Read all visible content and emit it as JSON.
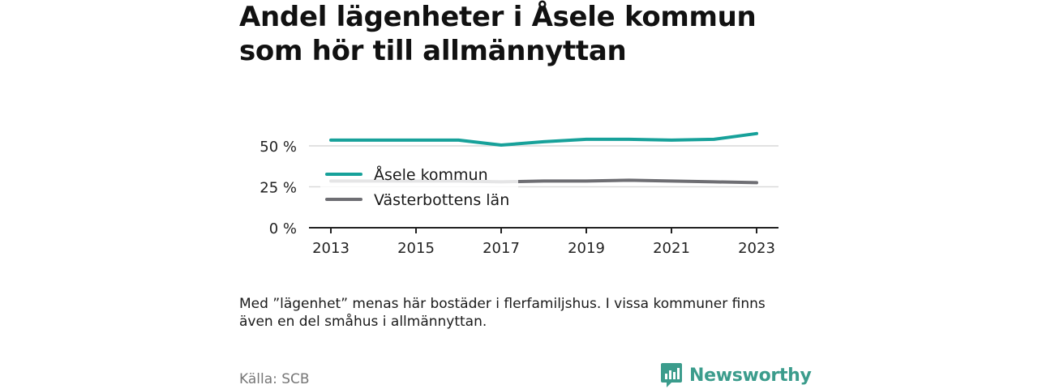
{
  "header": {
    "title_line1": "Andel lägenheter i Åsele kommun",
    "title_line2": "som hör till allmännyttan"
  },
  "chart_data": {
    "type": "line",
    "x": [
      2013,
      2014,
      2015,
      2016,
      2017,
      2018,
      2019,
      2020,
      2021,
      2022,
      2023
    ],
    "x_tick_labels": [
      "2013",
      "2015",
      "2017",
      "2019",
      "2021",
      "2023"
    ],
    "y_tick_labels": [
      "0 %",
      "25 %",
      "50 %"
    ],
    "ylim": [
      0,
      60
    ],
    "grid": true,
    "legend_placement": "inside-left",
    "series": [
      {
        "name": "Åsele kommun",
        "color": "#17a19a",
        "values": [
          53.5,
          53.5,
          53.5,
          53.5,
          50.5,
          52.5,
          54,
          54,
          53.5,
          54,
          57.5
        ]
      },
      {
        "name": "Västerbottens län",
        "color": "#6e6e73",
        "values": [
          28.5,
          28.5,
          28.5,
          28.5,
          28,
          28.5,
          28.5,
          29,
          28.5,
          28,
          27.5
        ]
      }
    ]
  },
  "footer": {
    "note": "Med ”lägenhet” menas här bostäder i flerfamiljshus. I vissa kommuner finns även en del småhus i allmännyttan.",
    "source": "Källa: SCB",
    "brand": "Newsworthy",
    "brand_color": "#3b9c8c"
  }
}
